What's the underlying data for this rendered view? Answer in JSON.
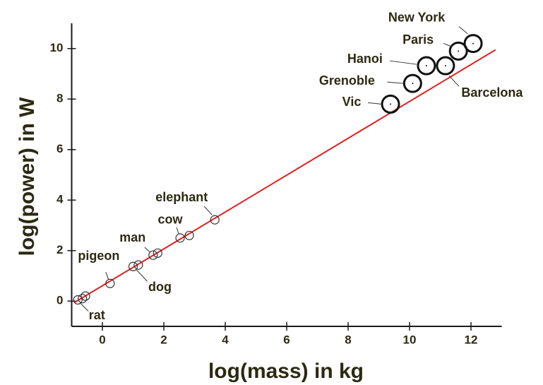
{
  "chart_data": {
    "type": "scatter",
    "xlabel": "log(mass) in kg",
    "ylabel": "log(power) in W",
    "xlim": [
      -1,
      13
    ],
    "ylim": [
      -1,
      11
    ],
    "xticks": [
      0,
      2,
      4,
      6,
      8,
      10,
      12
    ],
    "yticks": [
      0,
      2,
      4,
      6,
      8,
      10
    ],
    "series": [
      {
        "marker": "small",
        "color": "#333333",
        "x": [
          -0.8,
          -0.65,
          -0.55,
          0.25,
          1.0,
          1.17,
          1.65,
          1.8,
          2.53,
          2.83,
          3.66
        ],
        "y": [
          0.05,
          0.1,
          0.2,
          0.7,
          1.37,
          1.43,
          1.82,
          1.9,
          2.5,
          2.6,
          3.22
        ],
        "labels": [
          "rat",
          null,
          null,
          "pigeon",
          "dog",
          null,
          "man",
          null,
          "cow",
          null,
          "elephant"
        ]
      },
      {
        "marker": "large",
        "color": "#111111",
        "x": [
          9.38,
          10.1,
          10.55,
          11.17,
          11.59,
          12.07
        ],
        "y": [
          7.8,
          8.62,
          9.32,
          9.32,
          9.9,
          10.2
        ],
        "labels": [
          "Vic",
          "Grenoble",
          "Hanoi",
          "Barcelona",
          "Paris",
          "New York"
        ]
      }
    ],
    "fit": {
      "color": "#e02020",
      "x": [
        -0.9,
        12.8
      ],
      "y": [
        -0.05,
        9.95
      ]
    }
  }
}
